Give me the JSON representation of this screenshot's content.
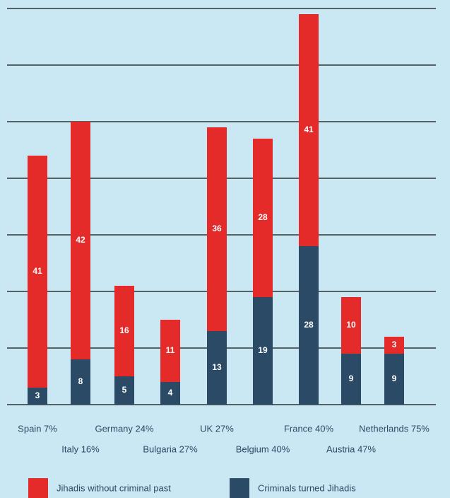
{
  "chart_data": {
    "type": "stacked_bar",
    "categories": [
      "Spain 7%",
      "Italy 16%",
      "Germany 24%",
      "Bulgaria 27%",
      "UK 27%",
      "Belgium 40%",
      "France 40%",
      "Austria 47%",
      "Netherlands 75%"
    ],
    "series": [
      {
        "name": "Criminals turned Jihadis",
        "color": "#2b4a66",
        "values": [
          3,
          8,
          5,
          4,
          13,
          19,
          28,
          9,
          9
        ]
      },
      {
        "name": "Jihadis without criminal past",
        "color": "#e52a2a",
        "values": [
          41,
          42,
          16,
          11,
          36,
          28,
          41,
          10,
          3
        ]
      }
    ],
    "ylim": [
      0,
      70
    ],
    "yticks": [
      0,
      10,
      20,
      30,
      40,
      50,
      60,
      70
    ],
    "grid": true
  }
}
